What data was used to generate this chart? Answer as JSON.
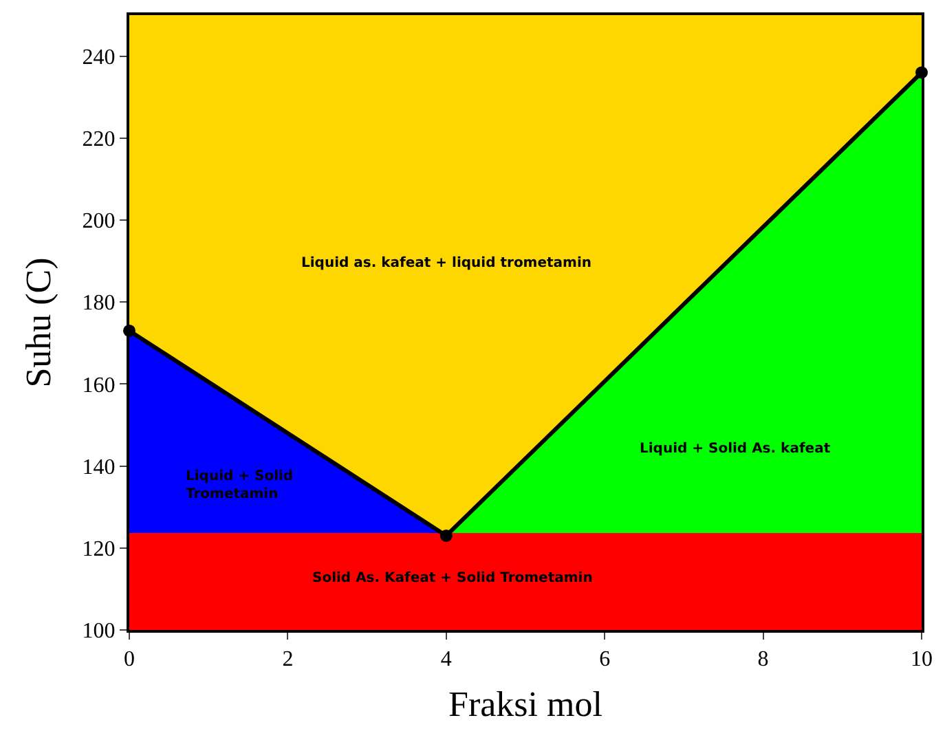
{
  "chart_data": {
    "type": "area",
    "xlabel": "Fraksi mol",
    "ylabel": "Suhu (C)",
    "xlim": [
      0,
      10
    ],
    "xticks": [
      0,
      2,
      4,
      6,
      8,
      10
    ],
    "ylim": [
      100,
      250
    ],
    "yticks": [
      100,
      120,
      140,
      160,
      180,
      200,
      220,
      240
    ],
    "grid": false,
    "bands": [
      {
        "axis": "y",
        "from": 100,
        "to": 123,
        "color": "#ff0000"
      },
      {
        "axis": "y",
        "from": 123,
        "to": 250,
        "color": "#ffd700"
      }
    ],
    "ref_lines": [
      {
        "axis": "y",
        "value": 123,
        "color": "#ff0000"
      }
    ],
    "series": [
      {
        "color": "#0000ff",
        "x": [
          0,
          4
        ],
        "values": [
          173,
          123
        ]
      },
      {
        "color": "#00ff00",
        "x": [
          4,
          10
        ],
        "values": [
          123,
          236
        ]
      },
      {
        "type": "line",
        "color": "#000000",
        "x": [
          0,
          4,
          10
        ],
        "values": [
          173,
          123,
          236
        ],
        "marker": "circle"
      }
    ],
    "annotations": [
      "Liquid as. kafeat + liquid trometamin",
      "Liquid + Solid\nTrometamin",
      "Liquid + Solid As. kafeat",
      "Solid As. Kafeat + Solid Trometamin"
    ]
  }
}
